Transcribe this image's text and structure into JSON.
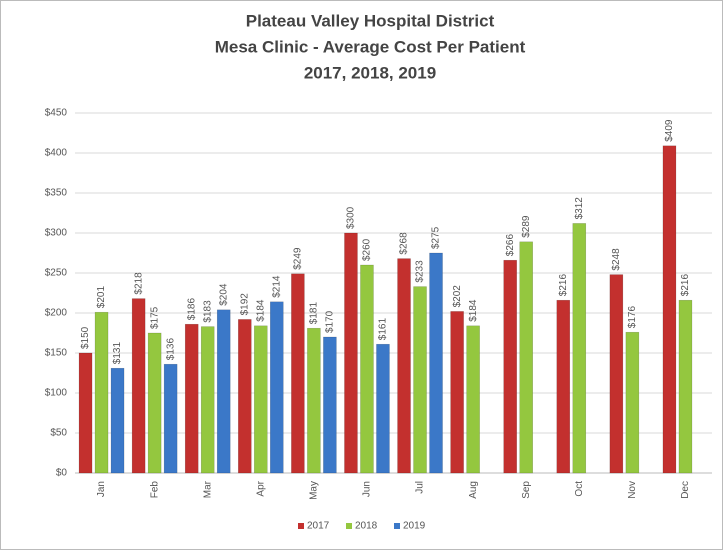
{
  "chart_data": {
    "type": "bar",
    "title": [
      "Plateau Valley Hospital District",
      "Mesa Clinic - Average Cost Per Patient",
      "2017, 2018, 2019"
    ],
    "categories": [
      "Jan",
      "Feb",
      "Mar",
      "Apr",
      "May",
      "Jun",
      "Jul",
      "Aug",
      "Sep",
      "Oct",
      "Nov",
      "Dec"
    ],
    "series": [
      {
        "name": "2017",
        "color": "#c3302e",
        "values": [
          150,
          218,
          186,
          192,
          249,
          300,
          268,
          202,
          266,
          216,
          248,
          409
        ],
        "value_labels": [
          "$150",
          "$218",
          "$186",
          "$192",
          "$249",
          "$300",
          "$268",
          "$202",
          "$266",
          "$216",
          "$248",
          "$409"
        ]
      },
      {
        "name": "2018",
        "color": "#94c73f",
        "values": [
          201,
          175,
          183,
          184,
          181,
          260,
          233,
          184,
          289,
          312,
          176,
          216
        ],
        "value_labels": [
          "$201",
          "$175",
          "$183",
          "$184",
          "$181",
          "$260",
          "$233",
          "$184",
          "$289",
          "$312",
          "$176",
          "$216"
        ]
      },
      {
        "name": "2019",
        "color": "#3b78c8",
        "values": [
          131,
          136,
          204,
          214,
          170,
          161,
          275,
          null,
          null,
          null,
          null,
          null
        ],
        "value_labels": [
          "$131",
          "$136",
          "$204",
          "$214",
          "$170",
          "$161",
          "$275",
          null,
          null,
          null,
          null,
          null
        ]
      }
    ],
    "ylim": [
      0,
      450
    ],
    "yticks": [
      {
        "value": 0,
        "label": "$0"
      },
      {
        "value": 50,
        "label": "$50"
      },
      {
        "value": 100,
        "label": "$100"
      },
      {
        "value": 150,
        "label": "$150"
      },
      {
        "value": 200,
        "label": "$200"
      },
      {
        "value": 250,
        "label": "$250"
      },
      {
        "value": 300,
        "label": "$300"
      },
      {
        "value": 350,
        "label": "$350"
      },
      {
        "value": 400,
        "label": "$400"
      },
      {
        "value": 450,
        "label": "$450"
      }
    ],
    "grid": true,
    "legend": "bottom"
  }
}
